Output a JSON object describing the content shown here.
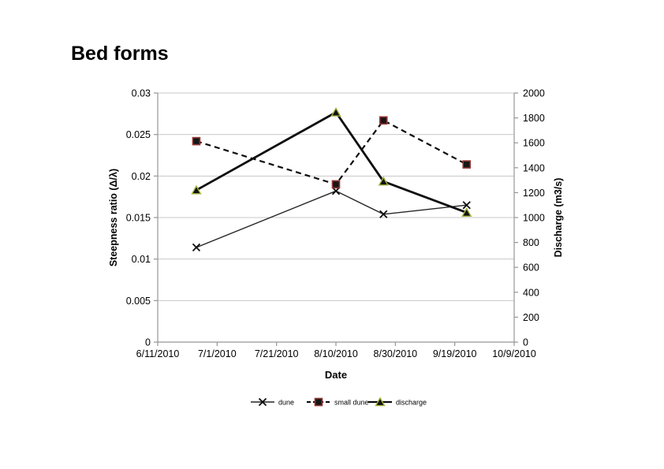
{
  "title": {
    "text": "Bed forms"
  },
  "colors": {
    "text": "#000000",
    "grid": "#c8c8c8",
    "axis": "#969696",
    "background": "#ffffff",
    "small_dune_marker_edge": "#953735",
    "discharge_marker_edge": "#a6b53f",
    "marker_fill": "#141414"
  },
  "chart_data": {
    "type": "line",
    "title": "Bed forms",
    "x_axis": {
      "label": "Date",
      "tick_labels": [
        "6/11/2010",
        "7/1/2010",
        "7/21/2010",
        "8/10/2010",
        "8/30/2010",
        "9/19/2010",
        "10/9/2010"
      ],
      "tick_days": [
        0,
        20,
        40,
        60,
        80,
        100,
        120
      ],
      "range_days": [
        0,
        120
      ]
    },
    "y_left": {
      "label": "Steepness ratio (Δ/λ)",
      "tick_labels": [
        "0",
        "0.005",
        "0.01",
        "0.015",
        "0.02",
        "0.025",
        "0.03"
      ],
      "tick_values": [
        0,
        0.005,
        0.01,
        0.015,
        0.02,
        0.025,
        0.03
      ],
      "range": [
        0,
        0.03
      ]
    },
    "y_right": {
      "label": "Discharge (m3/s)",
      "tick_labels": [
        "0",
        "200",
        "400",
        "600",
        "800",
        "1000",
        "1200",
        "1400",
        "1600",
        "1800",
        "2000"
      ],
      "tick_values": [
        0,
        200,
        400,
        600,
        800,
        1000,
        1200,
        1400,
        1600,
        1800,
        2000
      ],
      "range": [
        0,
        2000
      ]
    },
    "x_dates_est": [
      "6/24/2010",
      "8/10/2010",
      "8/26/2010",
      "9/23/2010"
    ],
    "series": [
      {
        "name": "dune",
        "axis": "left",
        "marker": "x",
        "line_style": "solid",
        "line_width": 1.4,
        "line_color": "#262626",
        "marker_fill": "none",
        "marker_stroke": "#0d0d0d",
        "x_days": [
          13,
          60,
          76,
          104
        ],
        "values": [
          0.0114,
          0.0182,
          0.0154,
          0.0165
        ]
      },
      {
        "name": "small dune",
        "axis": "left",
        "marker": "square",
        "line_style": "dashed",
        "line_width": 2.2,
        "line_color": "#0d0d0d",
        "marker_fill": "#161616",
        "marker_stroke": "#953735",
        "x_days": [
          13,
          60,
          76,
          104
        ],
        "values": [
          0.0242,
          0.019,
          0.0267,
          0.0214
        ]
      },
      {
        "name": "discharge",
        "axis": "right",
        "marker": "triangle",
        "line_style": "solid",
        "line_width": 2.8,
        "line_color": "#0d0d0d",
        "marker_fill": "#131313",
        "marker_stroke": "#a6b53f",
        "x_days": [
          13,
          60,
          76,
          104
        ],
        "values": [
          1220,
          1845,
          1290,
          1040
        ]
      }
    ],
    "legend": {
      "position": "bottom-center",
      "items": [
        "dune",
        "small dune",
        "discharge"
      ]
    },
    "grid": {
      "horizontal": true,
      "vertical": false
    }
  }
}
